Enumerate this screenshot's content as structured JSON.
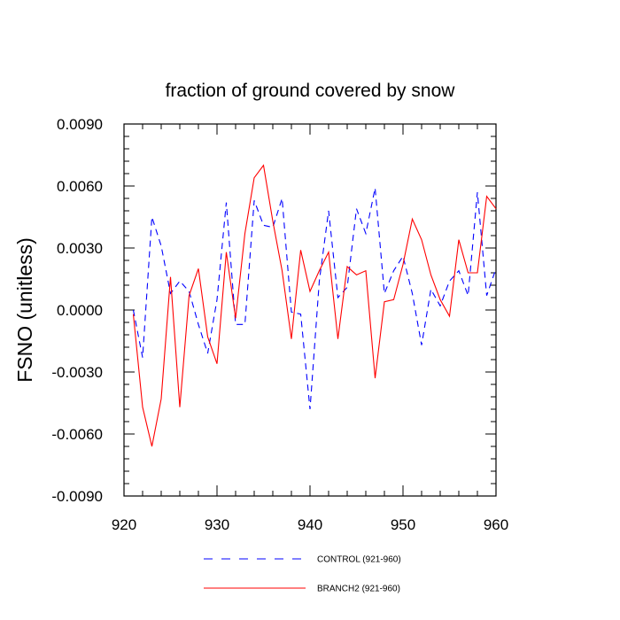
{
  "chart_data": {
    "type": "line",
    "title": "fraction of ground covered by snow",
    "xlabel": "",
    "ylabel": "FSNO  (unitless)",
    "xlim": [
      920,
      960
    ],
    "ylim": [
      -0.009,
      0.009
    ],
    "x_ticks": [
      920,
      930,
      940,
      950,
      960
    ],
    "x_tick_labels": [
      "920",
      "930",
      "940",
      "950",
      "960"
    ],
    "y_ticks": [
      -0.009,
      -0.006,
      -0.003,
      0.0,
      0.003,
      0.006,
      0.009
    ],
    "y_tick_labels": [
      "-0.0090",
      "-0.0060",
      "-0.0030",
      "0.0000",
      "0.0030",
      "0.0060",
      "0.0090"
    ],
    "grid": false,
    "legend_position": "bottom",
    "x": [
      921,
      922,
      923,
      924,
      925,
      926,
      927,
      928,
      929,
      930,
      931,
      932,
      933,
      934,
      935,
      936,
      937,
      938,
      939,
      940,
      941,
      942,
      943,
      944,
      945,
      946,
      947,
      948,
      949,
      950,
      951,
      952,
      953,
      954,
      955,
      956,
      957,
      958,
      959,
      960
    ],
    "series": [
      {
        "name": "CONTROL (921-960)",
        "color": "#0000ff",
        "style": "dashed",
        "values": [
          0.0,
          -0.0023,
          0.0045,
          0.0031,
          0.0008,
          0.0014,
          0.0009,
          -0.0007,
          -0.0021,
          0.0005,
          0.0052,
          -0.0007,
          -0.0007,
          0.0053,
          0.0041,
          0.004,
          0.0054,
          -0.0001,
          -0.0002,
          -0.0048,
          0.0014,
          0.0048,
          0.0006,
          0.0011,
          0.0049,
          0.0037,
          0.0059,
          0.0008,
          0.0019,
          0.0026,
          0.0008,
          -0.0017,
          0.001,
          0.0002,
          0.0014,
          0.0019,
          0.0007,
          0.0057,
          0.0007,
          0.002
        ]
      },
      {
        "name": "BRANCH2 (921-960)",
        "color": "#ff0000",
        "style": "solid",
        "values": [
          -0.0002,
          -0.0047,
          -0.0066,
          -0.0043,
          0.0016,
          -0.0047,
          0.0007,
          0.002,
          -0.0013,
          -0.0026,
          0.0028,
          -0.0004,
          0.0037,
          0.0064,
          0.007,
          0.0043,
          0.0019,
          -0.0014,
          0.0029,
          0.0009,
          0.0019,
          0.0028,
          -0.0014,
          0.0021,
          0.0017,
          0.0019,
          -0.0033,
          0.0004,
          0.0005,
          0.0022,
          0.0044,
          0.0034,
          0.0017,
          0.0005,
          -0.0003,
          0.0034,
          0.0018,
          0.0018,
          0.0055,
          0.0049
        ]
      }
    ]
  }
}
